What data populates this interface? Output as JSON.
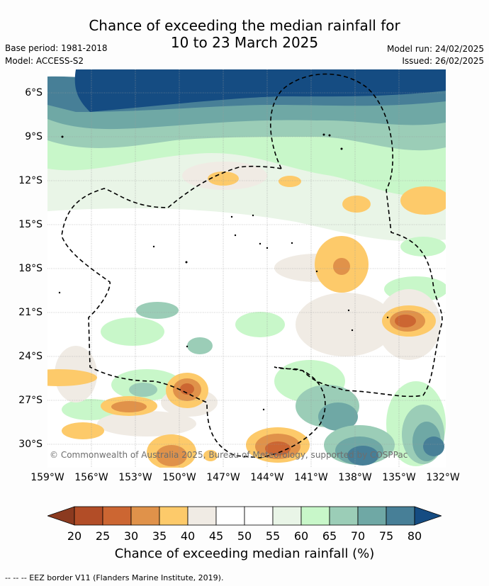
{
  "title_line1": "Chance of exceeding the median rainfall for",
  "title_line2": "10 to 23 March 2025",
  "base_period": "Base period: 1981-2018",
  "model": "Model: ACCESS-S2",
  "model_run": "Model run: 24/02/2025",
  "issued": "Issued: 26/02/2025",
  "credit": "© Commonwealth of Australia 2025, Bureau of Meteorology, supported by COSPPac",
  "lat_labels": [
    "6°S",
    "9°S",
    "12°S",
    "15°S",
    "18°S",
    "21°S",
    "24°S",
    "27°S",
    "30°S"
  ],
  "lon_labels": [
    "159°W",
    "156°W",
    "153°W",
    "150°W",
    "147°W",
    "144°W",
    "141°W",
    "138°W",
    "135°W",
    "132°W"
  ],
  "colorbar": {
    "ticks": [
      "20",
      "25",
      "30",
      "35",
      "40",
      "45",
      "50",
      "55",
      "60",
      "65",
      "70",
      "75",
      "80"
    ],
    "bins": [
      {
        "range": "<20",
        "color": "#8b3a1f"
      },
      {
        "range": "20-25",
        "color": "#b24d27"
      },
      {
        "range": "25-30",
        "color": "#cc6632"
      },
      {
        "range": "30-35",
        "color": "#e0924a"
      },
      {
        "range": "35-40",
        "color": "#fdca6a"
      },
      {
        "range": "40-45",
        "color": "#f0ebe4"
      },
      {
        "range": "45-50",
        "color": "#ffffff"
      },
      {
        "range": "50-55",
        "color": "#ffffff"
      },
      {
        "range": "55-60",
        "color": "#e9f5e7"
      },
      {
        "range": "60-65",
        "color": "#c8f7c9"
      },
      {
        "range": "65-70",
        "color": "#9bcdb7"
      },
      {
        "range": "70-75",
        "color": "#6fa8a5"
      },
      {
        "range": "75-80",
        "color": "#477f97"
      },
      {
        "range": ">80",
        "color": "#154c82"
      }
    ],
    "label": "Chance of exceeding median rainfall (%)"
  },
  "footnote": "--  --  -- EEZ border V11 (Flanders Marine Institute, 2019)."
}
